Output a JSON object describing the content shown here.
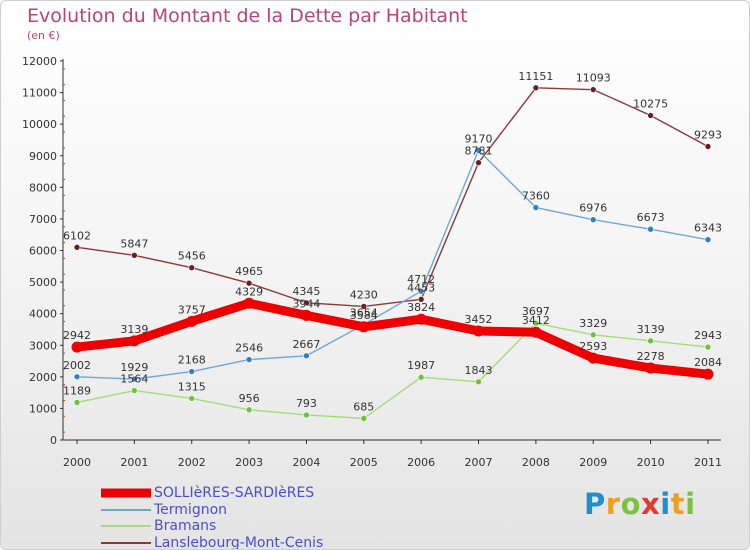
{
  "header": {
    "title": "Evolution du Montant de la Dette par Habitant",
    "subtitle": "(en €)"
  },
  "brand": {
    "name": "Proxiti",
    "letters": [
      {
        "char": "P",
        "color": "#1f8fd0"
      },
      {
        "char": "r",
        "color": "#f0a020"
      },
      {
        "char": "o",
        "color": "#7cc242"
      },
      {
        "char": "x",
        "color": "#e03b2f"
      },
      {
        "char": "i",
        "color": "#1f8fd0"
      },
      {
        "char": "t",
        "color": "#f0a020"
      },
      {
        "char": "i",
        "color": "#7cc242"
      }
    ]
  },
  "chart_data": {
    "type": "line",
    "title": "Evolution du Montant de la Dette par Habitant",
    "subtitle": "(en €)",
    "xlabel": "",
    "ylabel": "",
    "ylim": [
      0,
      12000
    ],
    "yticks": [
      0,
      1000,
      2000,
      3000,
      4000,
      5000,
      6000,
      7000,
      8000,
      9000,
      10000,
      11000,
      12000
    ],
    "grid": false,
    "legend_position": "bottom-left",
    "categories": [
      "2000",
      "2001",
      "2002",
      "2003",
      "2004",
      "2005",
      "2006",
      "2007",
      "2008",
      "2009",
      "2010",
      "2011"
    ],
    "series": [
      {
        "name": "SOLLIèRES-SARDIèRES",
        "color": "#ee0000",
        "marker": "#ee0000",
        "values": [
          2942,
          3139,
          3757,
          4329,
          3944,
          3584,
          3824,
          3452,
          3412,
          2593,
          2278,
          2084
        ]
      },
      {
        "name": "Termignon",
        "color": "#6fa8d8",
        "marker": "#2f7fc8",
        "values": [
          2002,
          1929,
          2168,
          2546,
          2667,
          3654,
          4712,
          9170,
          7360,
          6976,
          6673,
          6343
        ]
      },
      {
        "name": "Bramans",
        "color": "#a6dc7a",
        "marker": "#6cc23c",
        "values": [
          1189,
          1564,
          1315,
          956,
          793,
          685,
          1987,
          1843,
          3697,
          3329,
          3139,
          2943
        ]
      },
      {
        "name": "Lanslebourg-Mont-Cenis",
        "color": "#8b3a3a",
        "marker": "#6b1f24",
        "values": [
          6102,
          5847,
          5456,
          4965,
          4345,
          4230,
          4453,
          8781,
          11151,
          11093,
          10275,
          9293
        ]
      }
    ]
  }
}
